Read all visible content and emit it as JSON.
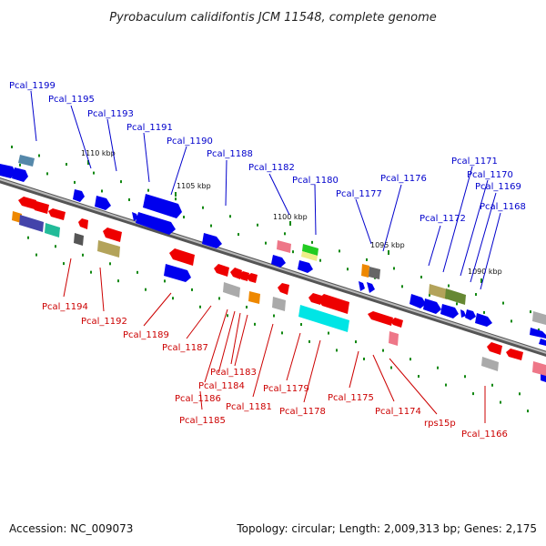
{
  "title": "Pyrobaculum calidifontis JCM 11548, complete genome",
  "footer": {
    "accession": "Accession: NC_009073",
    "summary": "Topology: circular; Length: 2,009,313 bp; Genes: 2,175"
  },
  "scale_ticks": [
    "1110 kbp",
    "1105 kbp",
    "1100 kbp",
    "1095 kbp",
    "1090 kbp"
  ],
  "labels_top": [
    "Pcal_1199",
    "Pcal_1195",
    "Pcal_1193",
    "Pcal_1191",
    "Pcal_1190",
    "Pcal_1188",
    "Pcal_1182",
    "Pcal_1180",
    "Pcal_1177",
    "Pcal_1176",
    "Pcal_1172",
    "Pcal_1171",
    "Pcal_1170",
    "Pcal_1169",
    "Pcal_1168"
  ],
  "labels_bottom": [
    "Pcal_1194",
    "Pcal_1192",
    "Pcal_1189",
    "Pcal_1187",
    "Pcal_1183",
    "Pcal_1184",
    "Pcal_1186",
    "Pcal_1185",
    "Pcal_1181",
    "Pcal_1179",
    "Pcal_1178",
    "Pcal_1175",
    "Pcal_1174",
    "rps15p",
    "Pcal_1166"
  ],
  "colors": {
    "forward_gene": "#0000ee",
    "reverse_gene": "#ee0000",
    "forward_label": "#0000cc",
    "reverse_label": "#cc0000",
    "backbone": "#888888",
    "tick_marks": "#118811"
  }
}
